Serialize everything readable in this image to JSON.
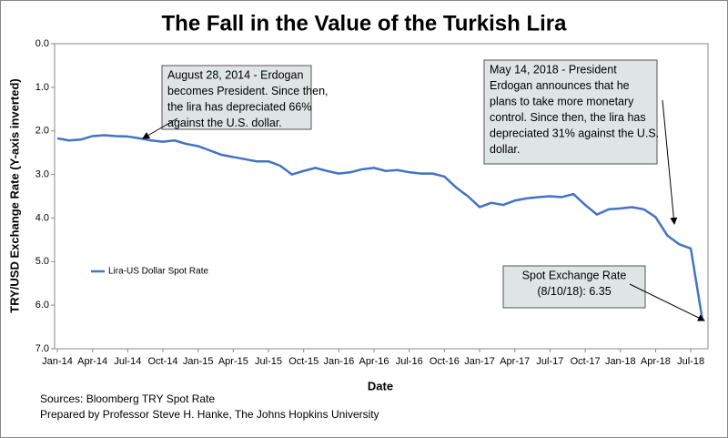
{
  "chart_data": {
    "type": "line",
    "title": "The Fall in the Value of the Turkish Lira",
    "x_label": "Date",
    "y_label": "TRY/USD Exchange Rate (Y-axis inverted)",
    "categories": [
      "Jan-14",
      null,
      null,
      "Apr-14",
      null,
      null,
      "Jul-14",
      null,
      null,
      "Oct-14",
      null,
      null,
      "Jan-15",
      null,
      null,
      "Apr-15",
      null,
      null,
      "Jul-15",
      null,
      null,
      "Oct-15",
      null,
      null,
      "Jan-16",
      null,
      null,
      "Apr-16",
      null,
      null,
      "Jul-16",
      null,
      null,
      "Oct-16",
      null,
      null,
      "Jan-17",
      null,
      null,
      "Apr-17",
      null,
      null,
      "Jul-17",
      null,
      null,
      "Oct-17",
      null,
      null,
      "Jan-18",
      null,
      null,
      "Apr-18",
      null,
      null,
      "Jul-18",
      null
    ],
    "series": [
      {
        "name": "Lira-US Dollar Spot Rate",
        "color": "#4472c4",
        "values": [
          2.17,
          2.22,
          2.2,
          2.12,
          2.1,
          2.12,
          2.13,
          2.17,
          2.22,
          2.25,
          2.22,
          2.3,
          2.35,
          2.45,
          2.55,
          2.6,
          2.65,
          2.7,
          2.7,
          2.8,
          3.0,
          2.92,
          2.85,
          2.92,
          2.98,
          2.95,
          2.88,
          2.85,
          2.92,
          2.9,
          2.95,
          2.98,
          2.98,
          3.05,
          3.3,
          3.5,
          3.75,
          3.65,
          3.7,
          3.6,
          3.55,
          3.52,
          3.5,
          3.52,
          3.45,
          3.7,
          3.92,
          3.8,
          3.78,
          3.75,
          3.8,
          3.98,
          4.4,
          4.6,
          4.7,
          6.35
        ]
      }
    ],
    "ylim": [
      0,
      7
    ],
    "y_inverted": true,
    "yticks": [
      {
        "value": 0,
        "label": "0.0"
      },
      {
        "value": 1,
        "label": "1.0"
      },
      {
        "value": 2,
        "label": "2.0"
      },
      {
        "value": 3,
        "label": "3.0"
      },
      {
        "value": 4,
        "label": "4.0"
      },
      {
        "value": 5,
        "label": "5.0"
      },
      {
        "value": 6,
        "label": "6.0"
      },
      {
        "value": 7,
        "label": "7.0"
      }
    ],
    "grid": false,
    "legend": "left",
    "annotations": [
      {
        "lines": [
          "August 28, 2014 - Erdogan",
          "becomes President.  Since then,",
          "the lira has depreciated 66%",
          "against the U.S. dollar."
        ]
      },
      {
        "lines": [
          "May 14, 2018 - President",
          "Erdogan announces that he",
          "plans to take more monetary",
          "control. Since then, the lira has",
          "depreciated 31% against the U.S.",
          "dollar."
        ]
      },
      {
        "lines": [
          "Spot Exchange Rate",
          "(8/10/18): 6.35"
        ]
      }
    ],
    "sources": [
      "Sources: Bloomberg TRY Spot Rate",
      "Prepared by Professor Steve H. Hanke, The Johns Hopkins University"
    ]
  }
}
